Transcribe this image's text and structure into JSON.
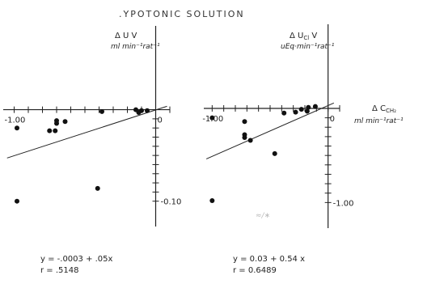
{
  "figure_title": ".YPOTONIC   SOLUTION",
  "left_equation": "y = -.0003 + .05x",
  "left_r": "r = .5148",
  "right_equation": "y = 0.03 + 0.54 x",
  "right_r": "r = 0.6489",
  "chart_data": [
    {
      "type": "scatter",
      "title": "",
      "xlabel": "",
      "ylabel": "Δ U V  ml min⁻¹ rat⁻¹",
      "xlim": [
        -1.1,
        0.1
      ],
      "ylim": [
        -0.11,
        0.012
      ],
      "x_ticks": [
        -1.0,
        -0.9,
        -0.8,
        -0.7,
        -0.6,
        -0.5,
        -0.4,
        -0.3,
        -0.2,
        -0.1,
        0,
        0.1
      ],
      "x_tick_labels": [
        {
          "value": -1.0,
          "label": "-1.00"
        },
        {
          "value": 0,
          "label": "0"
        }
      ],
      "y_ticks": [
        -0.01,
        -0.02,
        -0.03,
        -0.04,
        -0.05,
        -0.06,
        -0.07,
        -0.08,
        -0.09,
        -0.1
      ],
      "y_tick_labels": [
        {
          "value": -0.1,
          "label": "-0.10"
        }
      ],
      "points": [
        {
          "x": -0.98,
          "y": -0.02
        },
        {
          "x": -0.98,
          "y": -0.1
        },
        {
          "x": -0.7,
          "y": -0.012
        },
        {
          "x": -0.64,
          "y": -0.013
        },
        {
          "x": -0.7,
          "y": -0.015
        },
        {
          "x": -0.75,
          "y": -0.023
        },
        {
          "x": -0.71,
          "y": -0.023
        },
        {
          "x": -0.41,
          "y": -0.086
        },
        {
          "x": -0.38,
          "y": -0.002
        },
        {
          "x": -0.14,
          "y": 0.0
        },
        {
          "x": -0.12,
          "y": -0.003
        },
        {
          "x": -0.1,
          "y": -0.001
        },
        {
          "x": -0.06,
          "y": -0.001
        }
      ],
      "regression": {
        "intercept": -0.0003,
        "slope": 0.05,
        "x_range": [
          -1.05,
          0.08
        ]
      }
    },
    {
      "type": "scatter",
      "title": "",
      "xlabel": "Δ CCH₂ ml min⁻¹ rat⁻¹",
      "ylabel": "Δ UCl V  uEq min⁻¹ rat⁻¹",
      "xlim": [
        -1.1,
        0.1
      ],
      "ylim": [
        -1.1,
        0.12
      ],
      "x_ticks": [
        -1.0,
        -0.9,
        -0.8,
        -0.7,
        -0.6,
        -0.5,
        -0.4,
        -0.3,
        -0.2,
        -0.1,
        0,
        0.1
      ],
      "x_tick_labels": [
        {
          "value": -1.0,
          "label": "-1.00"
        },
        {
          "value": 0,
          "label": "0"
        }
      ],
      "y_ticks": [
        -0.1,
        -0.2,
        -0.3,
        -0.4,
        -0.5,
        -0.6,
        -0.7,
        -0.8,
        -0.9,
        -1.0
      ],
      "y_tick_labels": [
        {
          "value": -1.0,
          "label": "-1.00"
        }
      ],
      "points": [
        {
          "x": -1.0,
          "y": -0.1
        },
        {
          "x": -1.0,
          "y": -0.98
        },
        {
          "x": -0.72,
          "y": -0.14
        },
        {
          "x": -0.72,
          "y": -0.28
        },
        {
          "x": -0.72,
          "y": -0.31
        },
        {
          "x": -0.67,
          "y": -0.34
        },
        {
          "x": -0.46,
          "y": -0.48
        },
        {
          "x": -0.38,
          "y": -0.05
        },
        {
          "x": -0.28,
          "y": -0.04
        },
        {
          "x": -0.23,
          "y": -0.01
        },
        {
          "x": -0.18,
          "y": -0.03
        },
        {
          "x": -0.17,
          "y": 0.01
        },
        {
          "x": -0.11,
          "y": 0.02
        }
      ],
      "regression": {
        "intercept": 0.03,
        "slope": 0.54,
        "x_range": [
          -1.05,
          0.05
        ]
      }
    }
  ]
}
